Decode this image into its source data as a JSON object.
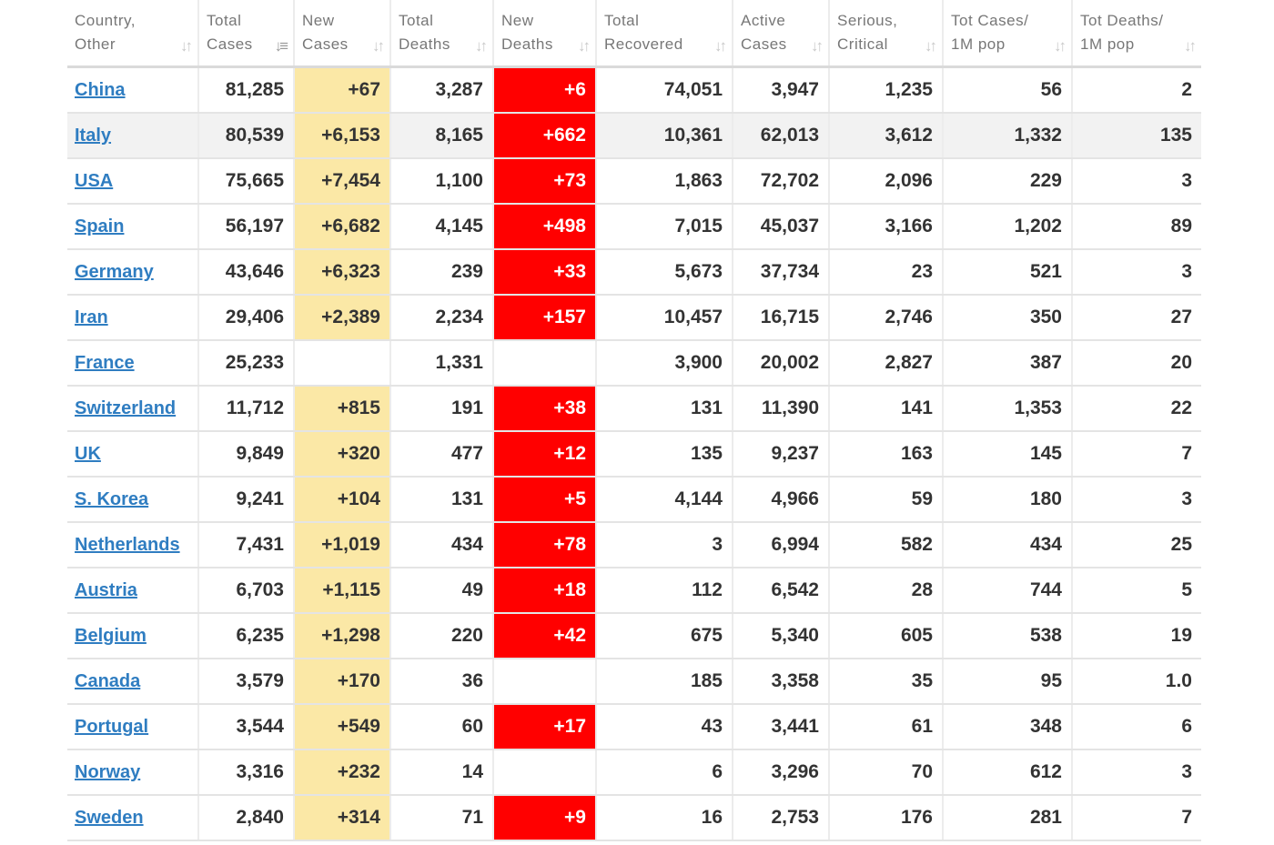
{
  "columns": [
    {
      "line1": "Country,",
      "line2": "Other",
      "sort_icon": "sort-icon"
    },
    {
      "line1": "Total",
      "line2": "Cases",
      "sort_icon": "sort-desc-icon",
      "active": true
    },
    {
      "line1": "New",
      "line2": "Cases",
      "sort_icon": "sort-icon"
    },
    {
      "line1": "Total",
      "line2": "Deaths",
      "sort_icon": "sort-icon"
    },
    {
      "line1": "New",
      "line2": "Deaths",
      "sort_icon": "sort-icon"
    },
    {
      "line1": "Total",
      "line2": "Recovered",
      "sort_icon": "sort-icon"
    },
    {
      "line1": "Active",
      "line2": "Cases",
      "sort_icon": "sort-icon"
    },
    {
      "line1": "Serious,",
      "line2": "Critical",
      "sort_icon": "sort-icon"
    },
    {
      "line1": "Tot Cases/",
      "line2": "1M pop",
      "sort_icon": "sort-icon"
    },
    {
      "line1": "Tot Deaths/",
      "line2": "1M pop",
      "sort_icon": "sort-icon"
    }
  ],
  "colors": {
    "new_cases_bg": "#fbe8a6",
    "new_deaths_bg": "#ff0000",
    "link": "#2f7dc1"
  },
  "rows": [
    [
      "China",
      "81,285",
      "+67",
      "3,287",
      "+6",
      "74,051",
      "3,947",
      "1,235",
      "56",
      "2"
    ],
    [
      "Italy",
      "80,539",
      "+6,153",
      "8,165",
      "+662",
      "10,361",
      "62,013",
      "3,612",
      "1,332",
      "135"
    ],
    [
      "USA",
      "75,665",
      "+7,454",
      "1,100",
      "+73",
      "1,863",
      "72,702",
      "2,096",
      "229",
      "3"
    ],
    [
      "Spain",
      "56,197",
      "+6,682",
      "4,145",
      "+498",
      "7,015",
      "45,037",
      "3,166",
      "1,202",
      "89"
    ],
    [
      "Germany",
      "43,646",
      "+6,323",
      "239",
      "+33",
      "5,673",
      "37,734",
      "23",
      "521",
      "3"
    ],
    [
      "Iran",
      "29,406",
      "+2,389",
      "2,234",
      "+157",
      "10,457",
      "16,715",
      "2,746",
      "350",
      "27"
    ],
    [
      "France",
      "25,233",
      "",
      "1,331",
      "",
      "3,900",
      "20,002",
      "2,827",
      "387",
      "20"
    ],
    [
      "Switzerland",
      "11,712",
      "+815",
      "191",
      "+38",
      "131",
      "11,390",
      "141",
      "1,353",
      "22"
    ],
    [
      "UK",
      "9,849",
      "+320",
      "477",
      "+12",
      "135",
      "9,237",
      "163",
      "145",
      "7"
    ],
    [
      "S. Korea",
      "9,241",
      "+104",
      "131",
      "+5",
      "4,144",
      "4,966",
      "59",
      "180",
      "3"
    ],
    [
      "Netherlands",
      "7,431",
      "+1,019",
      "434",
      "+78",
      "3",
      "6,994",
      "582",
      "434",
      "25"
    ],
    [
      "Austria",
      "6,703",
      "+1,115",
      "49",
      "+18",
      "112",
      "6,542",
      "28",
      "744",
      "5"
    ],
    [
      "Belgium",
      "6,235",
      "+1,298",
      "220",
      "+42",
      "675",
      "5,340",
      "605",
      "538",
      "19"
    ],
    [
      "Canada",
      "3,579",
      "+170",
      "36",
      "",
      "185",
      "3,358",
      "35",
      "95",
      "1.0"
    ],
    [
      "Portugal",
      "3,544",
      "+549",
      "60",
      "+17",
      "43",
      "3,441",
      "61",
      "348",
      "6"
    ],
    [
      "Norway",
      "3,316",
      "+232",
      "14",
      "",
      "6",
      "3,296",
      "70",
      "612",
      "3"
    ],
    [
      "Sweden",
      "2,840",
      "+314",
      "71",
      "+9",
      "16",
      "2,753",
      "176",
      "281",
      "7"
    ]
  ]
}
